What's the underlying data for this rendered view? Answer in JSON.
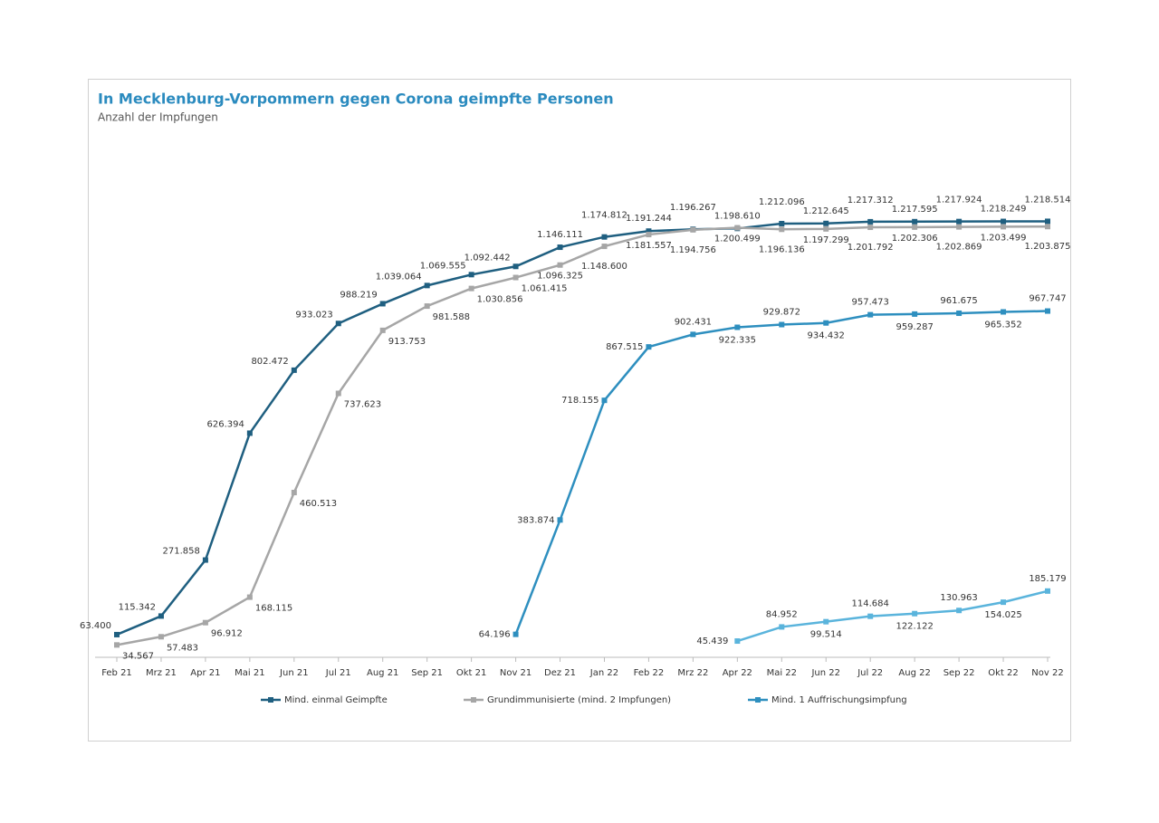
{
  "chart_data": {
    "type": "line",
    "title": "In Mecklenburg-Vorpommern gegen Corona geimpfte Personen",
    "subtitle": "Anzahl der Impfungen",
    "categories": [
      "Feb 21",
      "Mrz 21",
      "Apr 21",
      "Mai 21",
      "Jun 21",
      "Jul 21",
      "Aug 21",
      "Sep 21",
      "Okt 21",
      "Nov 21",
      "Dez 21",
      "Jan 22",
      "Feb 22",
      "Mrz 22",
      "Apr 22",
      "Mai 22",
      "Jun 22",
      "Jul 22",
      "Aug 22",
      "Sep 22",
      "Okt 22",
      "Nov 22"
    ],
    "ylim": [
      0,
      1250000
    ],
    "legend": "bottom",
    "series": [
      {
        "name": "Mind. einmal Geimpfte",
        "color": "#1f5f80",
        "values": [
          63400,
          115342,
          271858,
          626394,
          802472,
          933023,
          988219,
          1039064,
          1069555,
          1092442,
          1146111,
          1174812,
          1191244,
          1196267,
          1198610,
          1212096,
          1212645,
          1217312,
          1217595,
          1217924,
          1218249,
          1218514
        ],
        "value_labels": [
          "63.400",
          "115.342",
          "271.858",
          "626.394",
          "802.472",
          "933.023",
          "988.219",
          "1.039.064",
          "1.069.555",
          "1.092.442",
          "1.146.111",
          "1.174.812",
          "1.191.244",
          "1.196.267",
          "1.198.610",
          "1.212.096",
          "1.212.645",
          "1.217.312",
          "1.217.595",
          "1.217.924",
          "1.218.249",
          "1.218.514"
        ]
      },
      {
        "name": "Grundimmunisierte (mind. 2 Impfungen)",
        "color": "#a6a6a6",
        "values": [
          34567,
          57483,
          96912,
          168115,
          460513,
          737623,
          913753,
          981588,
          1030856,
          1061415,
          1096325,
          1148600,
          1181557,
          1194756,
          1200499,
          1196136,
          1197299,
          1201792,
          1202306,
          1202869,
          1203499,
          1203875
        ],
        "value_labels": [
          "34.567",
          "57.483",
          "96.912",
          "168.115",
          "460.513",
          "737.623",
          "913.753",
          "981.588",
          "1.030.856",
          "1.061.415",
          "1.096.325",
          "1.148.600",
          "1.181.557",
          "1.194.756",
          "1.200.499",
          "1.196.136",
          "1.197.299",
          "1.201.792",
          "1.202.306",
          "1.202.869",
          "1.203.499",
          "1.203.875"
        ]
      },
      {
        "name": "Mind. 1 Auffrischungsimpfung",
        "color": "#2e8fbf",
        "values": [
          null,
          null,
          null,
          null,
          null,
          null,
          null,
          null,
          null,
          64196,
          383874,
          718155,
          867515,
          902431,
          922335,
          929872,
          934432,
          957473,
          959287,
          961675,
          965352,
          967747
        ],
        "value_labels": [
          null,
          null,
          null,
          null,
          null,
          null,
          null,
          null,
          null,
          "64.196",
          "383.874",
          "718.155",
          "867.515",
          "902.431",
          "922.335",
          "929.872",
          "934.432",
          "957.473",
          "959.287",
          "961.675",
          "965.352",
          "967.747"
        ]
      },
      {
        "color": "#5ab4dc",
        "values": [
          null,
          null,
          null,
          null,
          null,
          null,
          null,
          null,
          null,
          null,
          null,
          null,
          null,
          null,
          45439,
          84952,
          99514,
          114684,
          122122,
          130963,
          154025,
          185179
        ],
        "value_labels": [
          null,
          null,
          null,
          null,
          null,
          null,
          null,
          null,
          null,
          null,
          null,
          null,
          null,
          null,
          "45.439",
          "84.952",
          "99.514",
          "114.684",
          "122.122",
          "130.963",
          "154.025",
          "185.179"
        ]
      }
    ]
  }
}
